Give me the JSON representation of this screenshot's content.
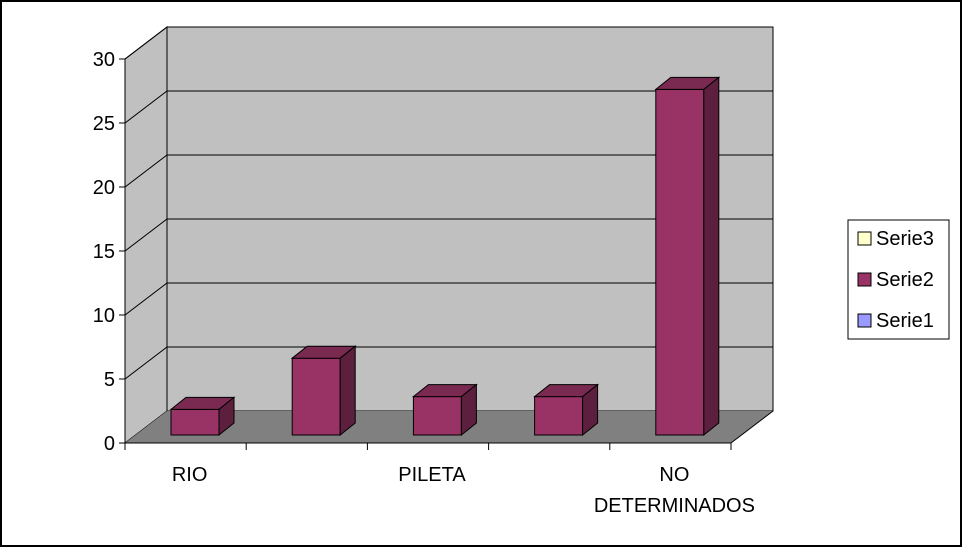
{
  "colors": {
    "back_wall": "#c0c0c0",
    "side_wall": "#c0c0c0",
    "floor": "#808080",
    "bar_front": "#993366",
    "bar_top": "#7a2950",
    "bar_side": "#5c1f3d",
    "grid": "#000000",
    "border": "#000000"
  },
  "chart_data": {
    "type": "bar",
    "view": "3d-column",
    "categories": [
      "RIO",
      "",
      "PILETA",
      "",
      "NO DETERMINADOS"
    ],
    "category_labels": [
      {
        "lines": [
          "RIO"
        ]
      },
      {
        "lines": [
          "PILETA"
        ]
      },
      {
        "lines": [
          "NO",
          "DETERMINADOS"
        ]
      }
    ],
    "label_slots": [
      0,
      2,
      4
    ],
    "series": [
      {
        "name": "Serie1",
        "values": [
          0,
          0,
          0,
          0,
          0
        ],
        "color": "#9999ff"
      },
      {
        "name": "Serie2",
        "values": [
          2,
          6,
          3,
          3,
          27
        ],
        "color": "#993366"
      },
      {
        "name": "Serie3",
        "values": [
          0,
          0,
          0,
          0,
          0
        ],
        "color": "#ffffcc"
      }
    ],
    "yticks": [
      "0",
      "5",
      "10",
      "15",
      "20",
      "25",
      "30"
    ],
    "ylim": [
      0,
      30
    ],
    "grid": true,
    "legend": {
      "placement": "right",
      "entries": [
        {
          "name": "Serie3",
          "color": "#ffffcc"
        },
        {
          "name": "Serie2",
          "color": "#993366"
        },
        {
          "name": "Serie1",
          "color": "#9999ff"
        }
      ]
    },
    "title": "",
    "xlabel": "",
    "ylabel": ""
  }
}
